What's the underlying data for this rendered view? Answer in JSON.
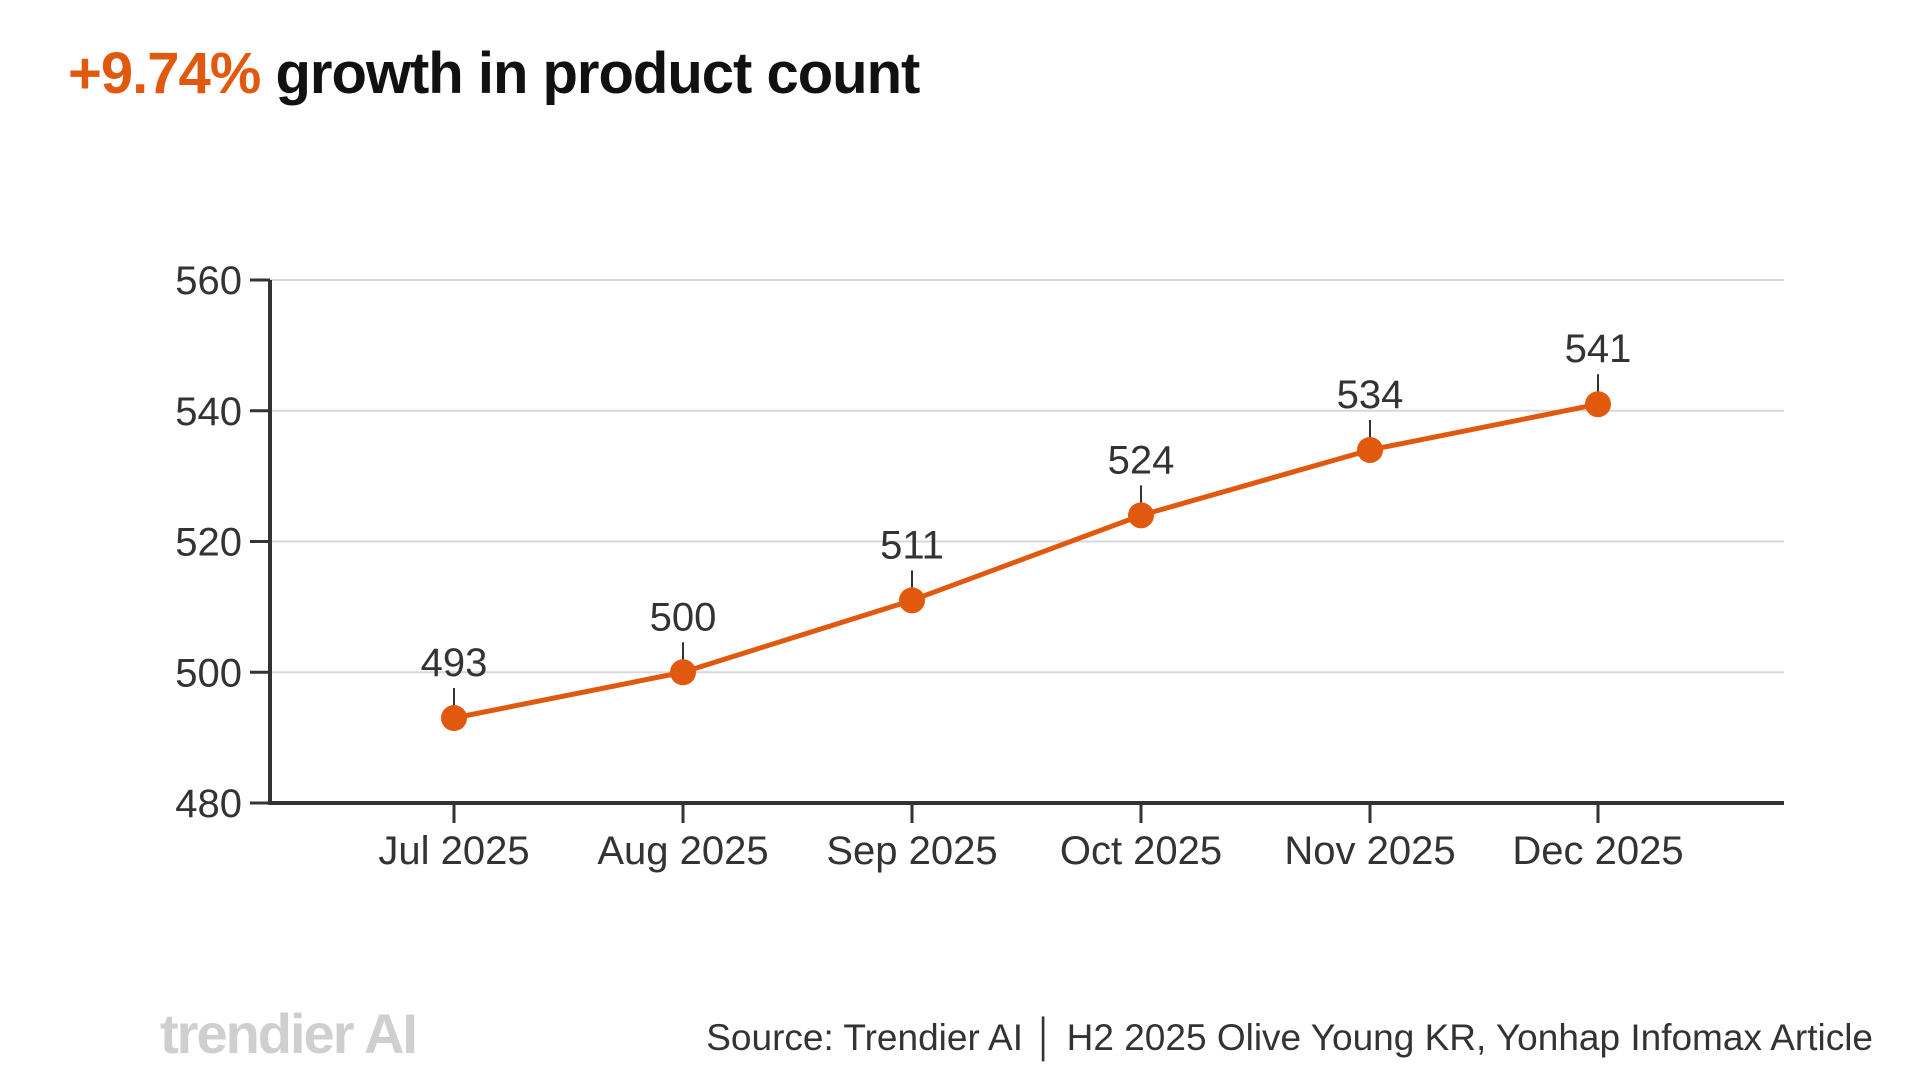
{
  "title": {
    "highlight": "+9.74%",
    "text": " growth in product count"
  },
  "colors": {
    "accent": "#E0590E",
    "grid": "#d9d9d9",
    "axis": "#333333",
    "text": "#333333",
    "logo": "#cfcfcf"
  },
  "chart_data": {
    "type": "line",
    "categories": [
      "Jul 2025",
      "Aug 2025",
      "Sep 2025",
      "Oct 2025",
      "Nov 2025",
      "Dec 2025"
    ],
    "values": [
      493,
      500,
      511,
      524,
      534,
      541
    ],
    "data_labels": [
      "493",
      "500",
      "511",
      "524",
      "534",
      "541"
    ],
    "ylim": [
      480,
      560
    ],
    "yticks": [
      480,
      500,
      520,
      540,
      560
    ],
    "ytick_labels": [
      "480",
      "500",
      "520",
      "540",
      "560"
    ],
    "grid": "horizontal",
    "xlabel": "",
    "ylabel": ""
  },
  "footer": {
    "logo": "trendier AI",
    "source": "Source: Trendier AI │ H2 2025 Olive Young KR, Yonhap Infomax Article"
  }
}
